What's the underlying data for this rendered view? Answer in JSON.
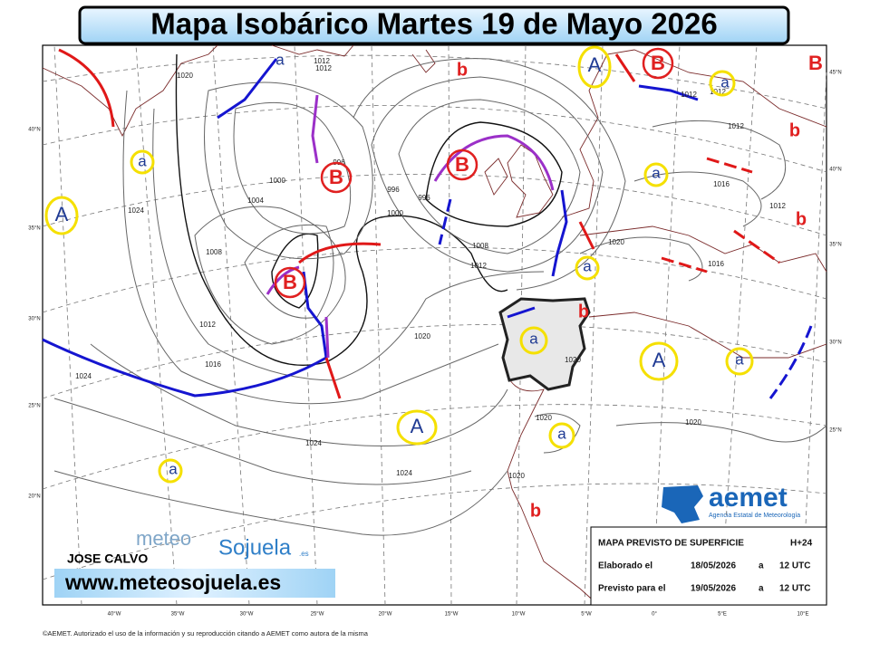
{
  "header": {
    "title": "Mapa Isobárico Martes 19 de Mayo 2026"
  },
  "map": {
    "pressure_centers": [
      "A",
      "a",
      "B",
      "B",
      "B",
      "b",
      "A",
      "B",
      "a",
      "B",
      "b",
      "a",
      "b",
      "a",
      "b",
      "a",
      "A",
      "a",
      "A",
      "a",
      "a",
      "b",
      "a"
    ],
    "isobar_labels": [
      "1020",
      "1012",
      "1012",
      "1024",
      "1008",
      "1004",
      "1000",
      "996",
      "996",
      "996",
      "1000",
      "1008",
      "1012",
      "1012",
      "1016",
      "1020",
      "1024",
      "1024",
      "1020",
      "1020",
      "1016",
      "1012",
      "1012",
      "1016",
      "1020",
      "1024",
      "1020",
      "1020",
      "1012",
      "1012"
    ],
    "latitude_labels": [
      "40°N",
      "35°N",
      "30°N",
      "25°N",
      "20°N",
      "45°N",
      "40°N",
      "35°N",
      "30°N",
      "25°N"
    ],
    "longitude_labels": [
      "40°W",
      "35°W",
      "30°W",
      "25°W",
      "20°W",
      "15°W",
      "10°W",
      "5°W",
      "0°",
      "5°E",
      "10°E"
    ]
  },
  "info_box": {
    "rows": [
      [
        "MAPA PREVISTO DE SUPERFICIE",
        "H+24"
      ],
      [
        "Elaborado el",
        "18/05/2026",
        "a",
        "12 UTC"
      ],
      [
        "Previsto para el",
        "19/05/2026",
        "a",
        "12 UTC"
      ]
    ]
  },
  "branding": {
    "aemet": "aemet",
    "aemet_subtitle": "Agencia Estatal de Meteorología",
    "meteo": "meteo",
    "sojuela": "Sojuela",
    "sojuela_suffix": ".es",
    "author": "JOSE CALVO",
    "website": "www.meteosojuela.es"
  },
  "footer": {
    "copyright": "©AEMET. Autorizado el uso de la información y su reproducción citando a AEMET como autora de la misma"
  }
}
